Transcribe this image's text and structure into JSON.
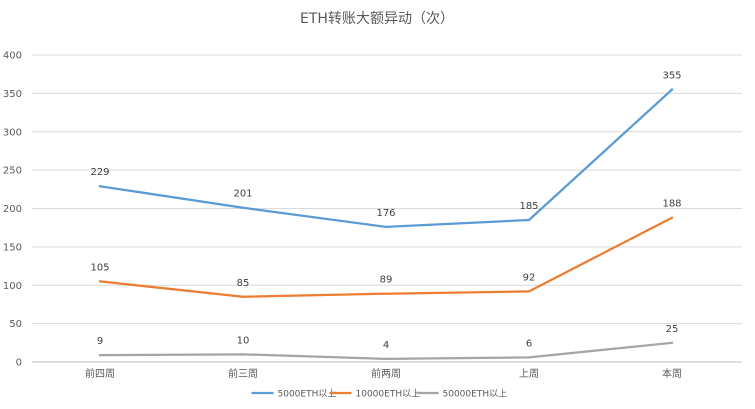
{
  "chart_data": {
    "type": "line",
    "title": "ETH转账大额异动（次）",
    "categories": [
      "前四周",
      "前三周",
      "前两周",
      "上周",
      "本周"
    ],
    "series": [
      {
        "name": "5000ETH以上",
        "color": "#5B9BD5",
        "values": [
          229,
          201,
          176,
          185,
          355
        ]
      },
      {
        "name": "10000ETH以上",
        "color": "#ED7D31",
        "values": [
          105,
          85,
          89,
          92,
          188
        ]
      },
      {
        "name": "50000ETH以上",
        "color": "#A5A5A5",
        "values": [
          9,
          10,
          4,
          6,
          25
        ]
      }
    ],
    "ylim": [
      0,
      400
    ],
    "yticks": [
      0,
      50,
      100,
      150,
      200,
      250,
      300,
      350,
      400
    ],
    "grid": true,
    "legend": "bottom",
    "data_labels": true
  }
}
